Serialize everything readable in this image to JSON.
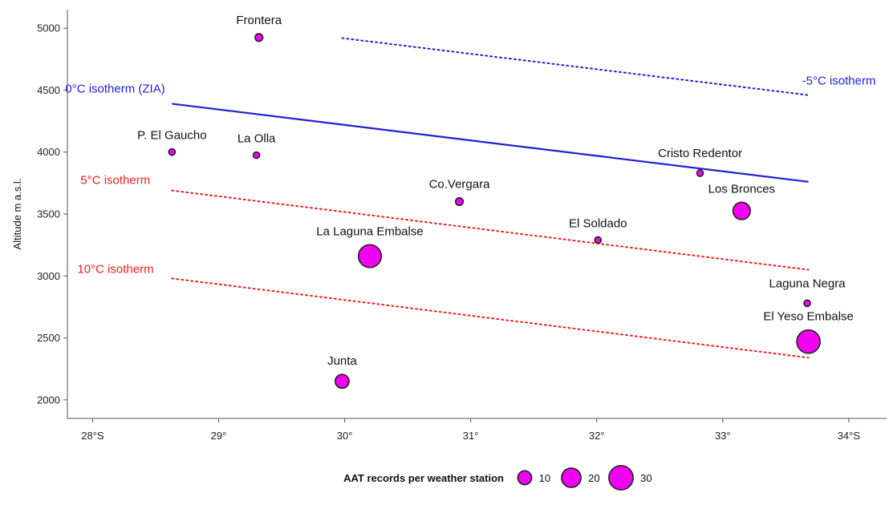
{
  "chart_data": {
    "type": "scatter",
    "title": "",
    "xlabel": "",
    "ylabel": "Altitude m a.s.l.",
    "xlim": [
      27.8,
      34.3
    ],
    "ylim": [
      1850,
      5150
    ],
    "x_ticks": [
      {
        "value": 28,
        "label": "28°S"
      },
      {
        "value": 29,
        "label": "29°"
      },
      {
        "value": 30,
        "label": "30°"
      },
      {
        "value": 31,
        "label": "31°"
      },
      {
        "value": 32,
        "label": "32°"
      },
      {
        "value": 33,
        "label": "33°"
      },
      {
        "value": 34,
        "label": "34°S"
      }
    ],
    "y_ticks": [
      {
        "value": 2000,
        "label": "2000"
      },
      {
        "value": 2500,
        "label": "2500"
      },
      {
        "value": 3000,
        "label": "3000"
      },
      {
        "value": 3500,
        "label": "3500"
      },
      {
        "value": 4000,
        "label": "4000"
      },
      {
        "value": 4500,
        "label": "4500"
      },
      {
        "value": 5000,
        "label": "5000"
      }
    ],
    "grid": false,
    "points": [
      {
        "name": "Frontera",
        "x": 29.32,
        "y": 4925,
        "records": 2
      },
      {
        "name": "P. El Gaucho",
        "x": 28.63,
        "y": 4000,
        "records": 1
      },
      {
        "name": "La Olla",
        "x": 29.3,
        "y": 3975,
        "records": 1
      },
      {
        "name": "Co.Vergara",
        "x": 30.91,
        "y": 3600,
        "records": 2
      },
      {
        "name": "Cristo Redentor",
        "x": 32.82,
        "y": 3830,
        "records": 1
      },
      {
        "name": "Los Bronces",
        "x": 33.15,
        "y": 3525,
        "records": 16
      },
      {
        "name": "El Soldado",
        "x": 32.01,
        "y": 3290,
        "records": 1
      },
      {
        "name": "La Laguna Embalse",
        "x": 30.2,
        "y": 3160,
        "records": 27
      },
      {
        "name": "Laguna Negra",
        "x": 33.67,
        "y": 2780,
        "records": 1
      },
      {
        "name": "El Yeso Embalse",
        "x": 33.68,
        "y": 2470,
        "records": 28
      },
      {
        "name": "Junta",
        "x": 29.98,
        "y": 2150,
        "records": 10
      }
    ],
    "isotherms": [
      {
        "name": "0°C isotherm (ZIA)",
        "style": "solid",
        "color": "#1f1fd6",
        "x": [
          28.63,
          33.68
        ],
        "y": [
          4390,
          3760
        ]
      },
      {
        "name": "-5°C isotherm",
        "style": "dotted",
        "color": "#1f1fd6",
        "x": [
          29.98,
          33.68
        ],
        "y": [
          4920,
          4460
        ]
      },
      {
        "name": "5°C isotherm",
        "style": "dotted",
        "color": "#e8201e",
        "x": [
          28.63,
          33.68
        ],
        "y": [
          3690,
          3050
        ]
      },
      {
        "name": "10°C isotherm",
        "style": "dotted",
        "color": "#e8201e",
        "x": [
          28.63,
          33.68
        ],
        "y": [
          2980,
          2340
        ]
      }
    ],
    "legend": {
      "title": "AAT records per weather station",
      "placement": "bottom",
      "entries": [
        {
          "label": "10",
          "records": 10
        },
        {
          "label": "20",
          "records": 20
        },
        {
          "label": "30",
          "records": 30
        }
      ]
    }
  },
  "colors": {
    "point_fill": "#f000f0",
    "point_stroke": "#222222",
    "axis": "#555555"
  }
}
